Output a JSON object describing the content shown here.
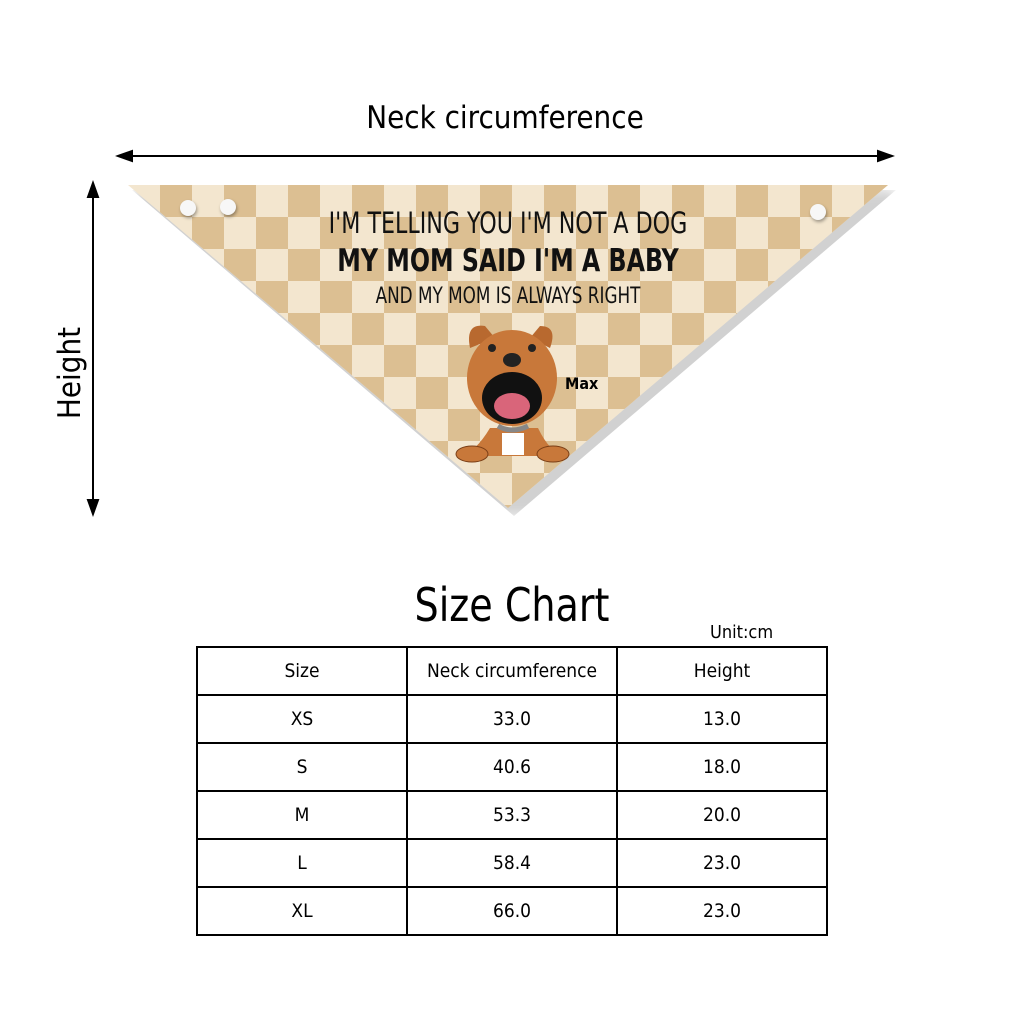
{
  "diagram": {
    "neck_label": "Neck circumference",
    "height_label": "Height"
  },
  "bandana": {
    "line1": "I'M TELLING YOU I'M NOT A DOG",
    "line2": "MY MOM SAID I'M A BABY",
    "line3": "AND MY MOM IS ALWAYS RIGHT",
    "pet_name": "Max",
    "colors": {
      "light": "#f3e6cf",
      "dark": "#dcbf92",
      "dog": "#c8783a"
    }
  },
  "size_chart": {
    "title": "Size Chart",
    "unit": "Unit:cm",
    "headers": [
      "Size",
      "Neck circumference",
      "Height"
    ],
    "rows": [
      [
        "XS",
        "33.0",
        "13.0"
      ],
      [
        "S",
        "40.6",
        "18.0"
      ],
      [
        "M",
        "53.3",
        "20.0"
      ],
      [
        "L",
        "58.4",
        "23.0"
      ],
      [
        "XL",
        "66.0",
        "23.0"
      ]
    ]
  }
}
